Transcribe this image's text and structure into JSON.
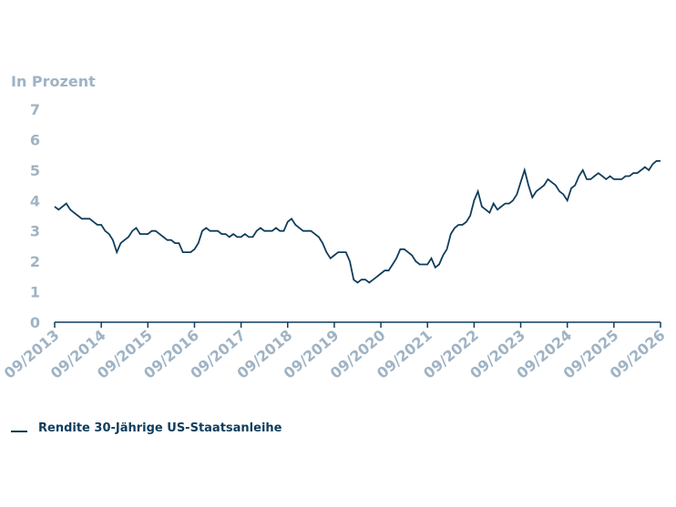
{
  "chart_data": {
    "type": "line",
    "axis_label": "In Prozent",
    "ylim": [
      0,
      7
    ],
    "yticks": [
      0,
      1,
      2,
      3,
      4,
      5,
      6,
      7
    ],
    "xlim": [
      "09/2013",
      "09/2026"
    ],
    "xticks": [
      "09/2013",
      "09/2014",
      "09/2015",
      "09/2016",
      "09/2017",
      "09/2018",
      "09/2019",
      "09/2020",
      "09/2021",
      "09/2022",
      "09/2023",
      "09/2024",
      "09/2025",
      "09/2026"
    ],
    "x": [
      "09/2013",
      "10/2013",
      "11/2013",
      "12/2013",
      "01/2014",
      "02/2014",
      "03/2014",
      "04/2014",
      "05/2014",
      "06/2014",
      "07/2014",
      "08/2014",
      "09/2014",
      "10/2014",
      "11/2014",
      "12/2014",
      "01/2015",
      "02/2015",
      "03/2015",
      "04/2015",
      "05/2015",
      "06/2015",
      "07/2015",
      "08/2015",
      "09/2015",
      "10/2015",
      "11/2015",
      "12/2015",
      "01/2016",
      "02/2016",
      "03/2016",
      "04/2016",
      "05/2016",
      "06/2016",
      "07/2016",
      "08/2016",
      "09/2016",
      "10/2016",
      "11/2016",
      "12/2016",
      "01/2017",
      "02/2017",
      "03/2017",
      "04/2017",
      "05/2017",
      "06/2017",
      "07/2017",
      "08/2017",
      "09/2017",
      "10/2017",
      "11/2017",
      "12/2017",
      "01/2018",
      "02/2018",
      "03/2018",
      "04/2018",
      "05/2018",
      "06/2018",
      "07/2018",
      "08/2018",
      "09/2018",
      "10/2018",
      "11/2018",
      "12/2018",
      "01/2019",
      "02/2019",
      "03/2019",
      "04/2019",
      "05/2019",
      "06/2019",
      "07/2019",
      "08/2019",
      "09/2019",
      "10/2019",
      "11/2019",
      "12/2019",
      "01/2020",
      "02/2020",
      "03/2020",
      "04/2020",
      "05/2020",
      "06/2020",
      "07/2020",
      "08/2020",
      "09/2020",
      "10/2020",
      "11/2020",
      "12/2020",
      "01/2021",
      "02/2021",
      "03/2021",
      "04/2021",
      "05/2021",
      "06/2021",
      "07/2021",
      "08/2021",
      "09/2021",
      "10/2021",
      "11/2021",
      "12/2021",
      "01/2022",
      "02/2022",
      "03/2022",
      "04/2022",
      "05/2022",
      "06/2022",
      "07/2022",
      "08/2022",
      "09/2022",
      "10/2022",
      "11/2022",
      "12/2022",
      "01/2023",
      "02/2023",
      "03/2023",
      "04/2023",
      "05/2023",
      "06/2023",
      "07/2023",
      "08/2023",
      "09/2023",
      "10/2023",
      "11/2023",
      "12/2023",
      "01/2024",
      "02/2024",
      "03/2024",
      "04/2024",
      "05/2024",
      "06/2024",
      "07/2024",
      "08/2024",
      "09/2024",
      "10/2024",
      "11/2024",
      "12/2024",
      "01/2025",
      "02/2025",
      "03/2025",
      "04/2025",
      "05/2025",
      "06/2025",
      "07/2025",
      "08/2025",
      "09/2025",
      "10/2025",
      "11/2025",
      "12/2025",
      "01/2026",
      "02/2026",
      "03/2026",
      "04/2026",
      "05/2026",
      "06/2026",
      "07/2026",
      "08/2026",
      "09/2026"
    ],
    "series": [
      {
        "name": "Rendite 30-Jährige US-Staatsanleihe",
        "color": "#0f3d5c",
        "values": [
          3.8,
          3.7,
          3.8,
          3.9,
          3.7,
          3.6,
          3.5,
          3.4,
          3.4,
          3.4,
          3.3,
          3.2,
          3.2,
          3.0,
          2.9,
          2.7,
          2.3,
          2.6,
          2.7,
          2.8,
          3.0,
          3.1,
          2.9,
          2.9,
          2.9,
          3.0,
          3.0,
          2.9,
          2.8,
          2.7,
          2.7,
          2.6,
          2.6,
          2.3,
          2.3,
          2.3,
          2.4,
          2.6,
          3.0,
          3.1,
          3.0,
          3.0,
          3.0,
          2.9,
          2.9,
          2.8,
          2.9,
          2.8,
          2.8,
          2.9,
          2.8,
          2.8,
          3.0,
          3.1,
          3.0,
          3.0,
          3.0,
          3.1,
          3.0,
          3.0,
          3.3,
          3.4,
          3.2,
          3.1,
          3.0,
          3.0,
          3.0,
          2.9,
          2.8,
          2.6,
          2.3,
          2.1,
          2.2,
          2.3,
          2.3,
          2.3,
          2.0,
          1.4,
          1.3,
          1.4,
          1.4,
          1.3,
          1.4,
          1.5,
          1.6,
          1.7,
          1.7,
          1.9,
          2.1,
          2.4,
          2.4,
          2.3,
          2.2,
          2.0,
          1.9,
          1.9,
          1.9,
          2.1,
          1.8,
          1.9,
          2.2,
          2.4,
          2.9,
          3.1,
          3.2,
          3.2,
          3.3,
          3.5,
          4.0,
          4.3,
          3.8,
          3.7,
          3.6,
          3.9,
          3.7,
          3.8,
          3.9,
          3.9,
          4.0,
          4.2,
          4.6,
          5.0,
          4.5,
          4.1,
          4.3,
          4.4,
          4.5,
          4.7,
          4.6,
          4.5,
          4.3,
          4.2,
          4.0,
          4.4,
          4.5,
          4.8,
          5.0,
          4.7,
          4.7,
          4.8,
          4.9,
          4.8,
          4.7,
          4.8,
          4.7,
          4.7,
          4.7,
          4.8,
          4.8,
          4.9,
          4.9,
          5.0,
          5.1,
          5.0,
          5.2,
          5.3,
          5.3
        ]
      }
    ]
  }
}
